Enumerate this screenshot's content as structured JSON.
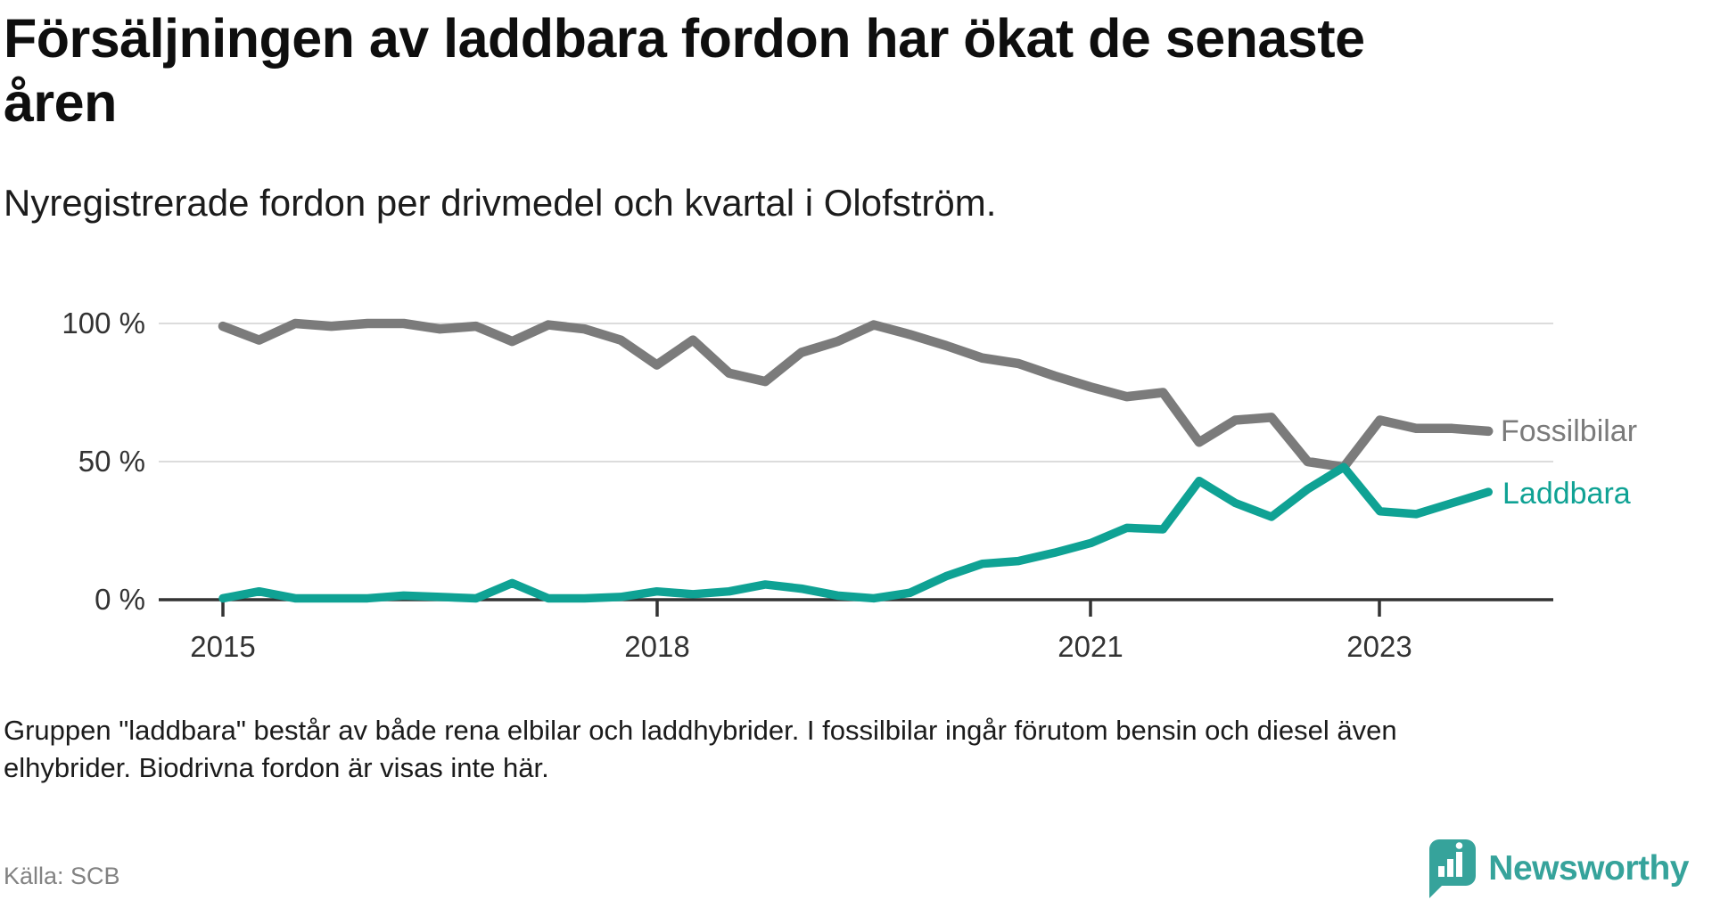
{
  "title": {
    "line1": "Försäljningen av laddbara fordon har ökat de senaste",
    "line2": "åren"
  },
  "subtitle": "Nyregistrerade fordon per drivmedel och kvartal i Olofström.",
  "note_line1": "Gruppen \"laddbara\" består av både rena elbilar och laddhybrider. I fossilbilar ingår förutom bensin och diesel även",
  "note_line2": "elhybrider. Biodrivna fordon är visas inte här.",
  "source": "Källa: SCB",
  "logo_text": "Newsworthy",
  "colors": {
    "fossil": "#7b7b7b",
    "laddbara": "#0fa294",
    "axis": "#333333",
    "grid": "#dcdcdc",
    "logo_teal": "#36a39b",
    "title_text": "#0e0e0e",
    "note_text": "#1b1b1b",
    "source_text": "#828282"
  },
  "chart_data": {
    "type": "line",
    "title": "Försäljningen av laddbara fordon har ökat de senaste åren",
    "subtitle": "Nyregistrerade fordon per drivmedel och kvartal i Olofström.",
    "unit": "%",
    "ylim": [
      0,
      100
    ],
    "grid": "horizontal",
    "legend_position": "right-of-line-end",
    "x": [
      "2015K1",
      "2015K2",
      "2015K3",
      "2015K4",
      "2016K1",
      "2016K2",
      "2016K3",
      "2016K4",
      "2017K1",
      "2017K2",
      "2017K3",
      "2017K4",
      "2018K1",
      "2018K2",
      "2018K3",
      "2018K4",
      "2019K1",
      "2019K2",
      "2019K3",
      "2019K4",
      "2020K1",
      "2020K2",
      "2020K3",
      "2020K4",
      "2021K1",
      "2021K2",
      "2021K3",
      "2021K4",
      "2022K1",
      "2022K2",
      "2022K3",
      "2022K4",
      "2023K1",
      "2023K2",
      "2023K3",
      "2023K4"
    ],
    "series": [
      {
        "name": "Fossilbilar",
        "color": "#7b7b7b",
        "values": [
          99,
          94,
          100,
          99,
          100,
          100,
          98,
          99,
          93.5,
          99.5,
          98,
          94,
          85,
          94,
          82,
          79,
          89.5,
          93.5,
          99.5,
          96,
          92,
          87.5,
          85.5,
          81,
          77,
          73.5,
          75,
          57,
          65,
          66,
          50,
          48,
          65,
          62,
          62,
          61
        ]
      },
      {
        "name": "Laddbara",
        "color": "#0fa294",
        "values": [
          0.5,
          3,
          0.5,
          0.5,
          0.5,
          1.5,
          1,
          0.5,
          6,
          0.5,
          0.5,
          1,
          3,
          2,
          3,
          5.5,
          4,
          1.5,
          0.5,
          2.5,
          8.5,
          13,
          14,
          17,
          20.5,
          26,
          25.5,
          43,
          35,
          30,
          40,
          48,
          32,
          31,
          35,
          39
        ]
      }
    ],
    "y_tick_labels": [
      "100 %",
      "50 %",
      "0 %"
    ],
    "y_tick_values": [
      100,
      50,
      0
    ],
    "x_tick_labels": [
      "2015",
      "2018",
      "2021",
      "2023"
    ],
    "x_tick_quarter_indices": [
      0,
      12,
      24,
      32
    ]
  }
}
